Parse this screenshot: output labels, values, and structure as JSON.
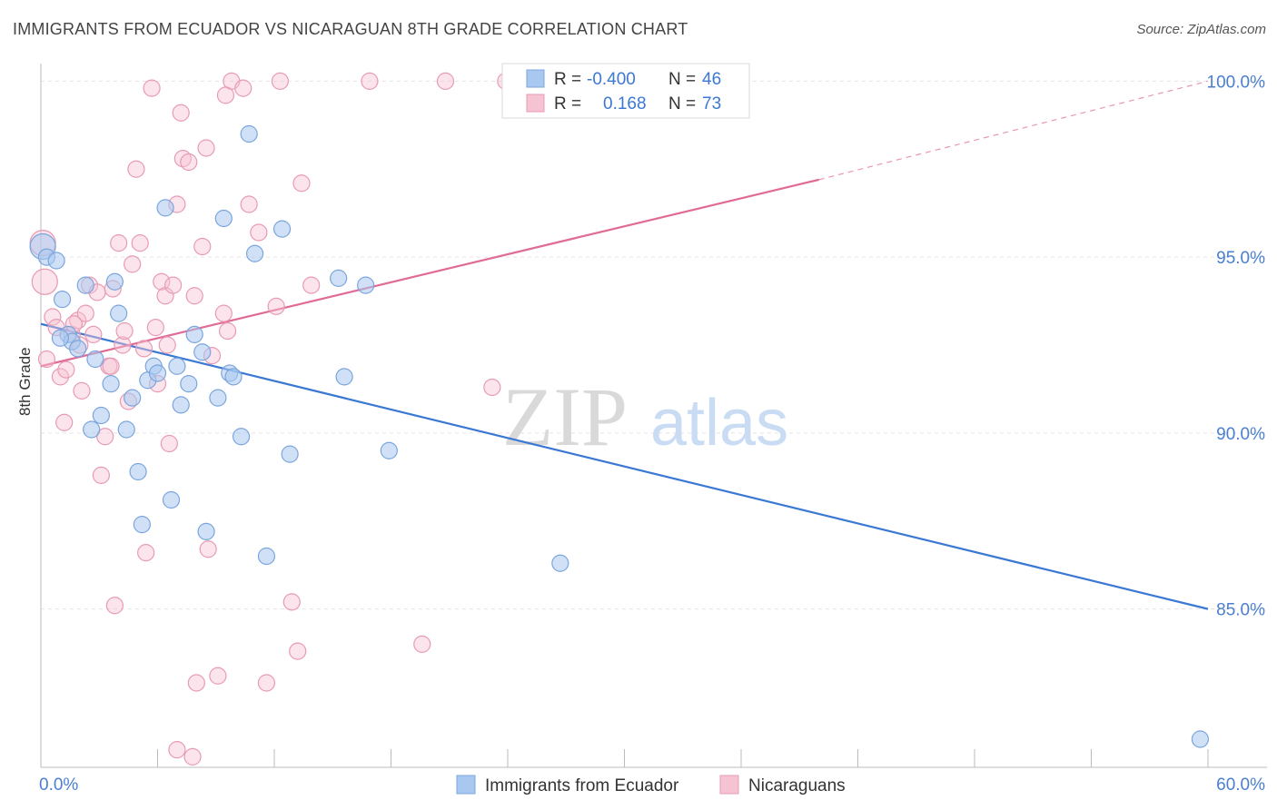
{
  "header": {
    "title": "IMMIGRANTS FROM ECUADOR VS NICARAGUAN 8TH GRADE CORRELATION CHART",
    "source": "Source: ZipAtlas.com"
  },
  "watermark": {
    "zip": "ZIP",
    "atlas": "atlas"
  },
  "legend_box": {
    "rows": [
      {
        "r_label": "R = ",
        "r_value": "-0.400",
        "n_label": "N = ",
        "n_value": "46"
      },
      {
        "r_label": "R = ",
        "r_value": "0.168",
        "n_label": "N = ",
        "n_value": "73"
      }
    ]
  },
  "bottom_legend": {
    "items": [
      {
        "label": "Immigrants from Ecuador"
      },
      {
        "label": "Nicaraguans"
      }
    ]
  },
  "chart_data": {
    "type": "scatter",
    "title": "IMMIGRANTS FROM ECUADOR VS NICARAGUAN 8TH GRADE CORRELATION CHART",
    "xlabel": "",
    "ylabel": "8th Grade",
    "xlim": [
      0,
      60
    ],
    "ylim": [
      80.5,
      100.5
    ],
    "x_tick_labels": [
      "0.0%",
      "60.0%"
    ],
    "y_ticks": [
      85,
      90,
      95,
      100
    ],
    "y_tick_labels": [
      "85.0%",
      "90.0%",
      "95.0%",
      "100.0%"
    ],
    "grid": "horizontal dashed",
    "colors": {
      "ecuador_fill": "#a9c8f0",
      "ecuador_stroke": "#7aa5dc",
      "ecuador_line": "#3a78d4",
      "nicaraguan_fill": "#f6c3d3",
      "nicaraguan_stroke": "#e89ab4",
      "nicaraguan_line": "#e06b96",
      "value_text": "#3a78d4",
      "axis_text": "#4a7fd0"
    },
    "series": [
      {
        "name": "Immigrants from Ecuador",
        "R": -0.4,
        "N": 46,
        "trend": {
          "x": [
            0,
            60
          ],
          "y": [
            93.1,
            85.0
          ]
        },
        "points": [
          [
            0.1,
            95.3
          ],
          [
            0.3,
            95.0
          ],
          [
            0.8,
            94.9
          ],
          [
            1.1,
            93.8
          ],
          [
            1.4,
            92.8
          ],
          [
            1.6,
            92.6
          ],
          [
            1.9,
            92.4
          ],
          [
            2.3,
            94.2
          ],
          [
            2.8,
            92.1
          ],
          [
            3.1,
            90.5
          ],
          [
            2.6,
            90.1
          ],
          [
            3.6,
            91.4
          ],
          [
            3.8,
            94.3
          ],
          [
            4.0,
            93.4
          ],
          [
            4.4,
            90.1
          ],
          [
            4.7,
            91.0
          ],
          [
            5.0,
            88.9
          ],
          [
            5.2,
            87.4
          ],
          [
            5.5,
            91.5
          ],
          [
            5.8,
            91.9
          ],
          [
            6.0,
            91.7
          ],
          [
            6.4,
            96.4
          ],
          [
            6.7,
            88.1
          ],
          [
            7.0,
            91.9
          ],
          [
            7.2,
            90.8
          ],
          [
            7.6,
            91.4
          ],
          [
            7.9,
            92.8
          ],
          [
            8.3,
            92.3
          ],
          [
            8.5,
            87.2
          ],
          [
            9.1,
            91.0
          ],
          [
            9.4,
            96.1
          ],
          [
            9.7,
            91.7
          ],
          [
            9.9,
            91.6
          ],
          [
            10.3,
            89.9
          ],
          [
            10.7,
            98.5
          ],
          [
            11.0,
            95.1
          ],
          [
            11.6,
            86.5
          ],
          [
            12.4,
            95.8
          ],
          [
            12.8,
            89.4
          ],
          [
            15.3,
            94.4
          ],
          [
            15.6,
            91.6
          ],
          [
            16.7,
            94.2
          ],
          [
            17.9,
            89.5
          ],
          [
            26.7,
            86.3
          ],
          [
            59.6,
            81.3
          ],
          [
            1.0,
            92.7
          ]
        ]
      },
      {
        "name": "Nicaraguans",
        "R": 0.168,
        "N": 73,
        "trend": {
          "x": [
            0,
            40
          ],
          "y": [
            91.9,
            97.2
          ],
          "dashed_extension": {
            "x": [
              40,
              60
            ],
            "y": [
              97.2,
              100.0
            ]
          }
        },
        "points": [
          [
            0.1,
            95.4
          ],
          [
            0.2,
            94.3
          ],
          [
            0.3,
            92.1
          ],
          [
            0.6,
            93.3
          ],
          [
            0.8,
            93.0
          ],
          [
            1.0,
            91.6
          ],
          [
            1.2,
            90.3
          ],
          [
            1.3,
            91.8
          ],
          [
            1.6,
            92.8
          ],
          [
            1.9,
            93.2
          ],
          [
            2.1,
            91.2
          ],
          [
            2.3,
            93.4
          ],
          [
            2.5,
            94.2
          ],
          [
            2.7,
            92.8
          ],
          [
            2.9,
            94.0
          ],
          [
            3.1,
            88.8
          ],
          [
            3.3,
            89.9
          ],
          [
            3.5,
            91.9
          ],
          [
            3.7,
            94.1
          ],
          [
            3.8,
            85.1
          ],
          [
            4.0,
            95.4
          ],
          [
            4.2,
            92.5
          ],
          [
            4.3,
            92.9
          ],
          [
            4.5,
            90.9
          ],
          [
            4.7,
            94.8
          ],
          [
            4.9,
            97.5
          ],
          [
            5.1,
            95.4
          ],
          [
            5.3,
            92.4
          ],
          [
            5.4,
            86.6
          ],
          [
            5.7,
            99.8
          ],
          [
            5.9,
            93.0
          ],
          [
            6.0,
            91.4
          ],
          [
            6.2,
            94.3
          ],
          [
            6.4,
            93.9
          ],
          [
            6.5,
            92.5
          ],
          [
            6.6,
            89.7
          ],
          [
            6.8,
            94.2
          ],
          [
            7.0,
            96.5
          ],
          [
            7.2,
            99.1
          ],
          [
            7.3,
            97.8
          ],
          [
            7.6,
            97.7
          ],
          [
            7.9,
            93.9
          ],
          [
            8.0,
            82.9
          ],
          [
            8.3,
            95.3
          ],
          [
            8.5,
            98.1
          ],
          [
            8.6,
            86.7
          ],
          [
            8.8,
            92.2
          ],
          [
            9.1,
            83.1
          ],
          [
            9.4,
            93.4
          ],
          [
            9.6,
            92.9
          ],
          [
            9.8,
            100.0
          ],
          [
            10.4,
            99.8
          ],
          [
            10.7,
            96.5
          ],
          [
            11.2,
            95.7
          ],
          [
            11.6,
            82.9
          ],
          [
            12.1,
            93.6
          ],
          [
            12.3,
            100.0
          ],
          [
            12.9,
            85.2
          ],
          [
            13.2,
            83.8
          ],
          [
            13.4,
            97.1
          ],
          [
            13.9,
            94.2
          ],
          [
            16.9,
            100.0
          ],
          [
            19.6,
            84.0
          ],
          [
            20.8,
            100.0
          ],
          [
            23.2,
            91.3
          ],
          [
            23.9,
            100.0
          ],
          [
            25.0,
            100.0
          ],
          [
            7.0,
            81.0
          ],
          [
            7.8,
            80.8
          ],
          [
            3.6,
            91.9
          ],
          [
            1.7,
            93.1
          ],
          [
            9.5,
            99.6
          ],
          [
            2.0,
            92.5
          ]
        ]
      }
    ]
  }
}
